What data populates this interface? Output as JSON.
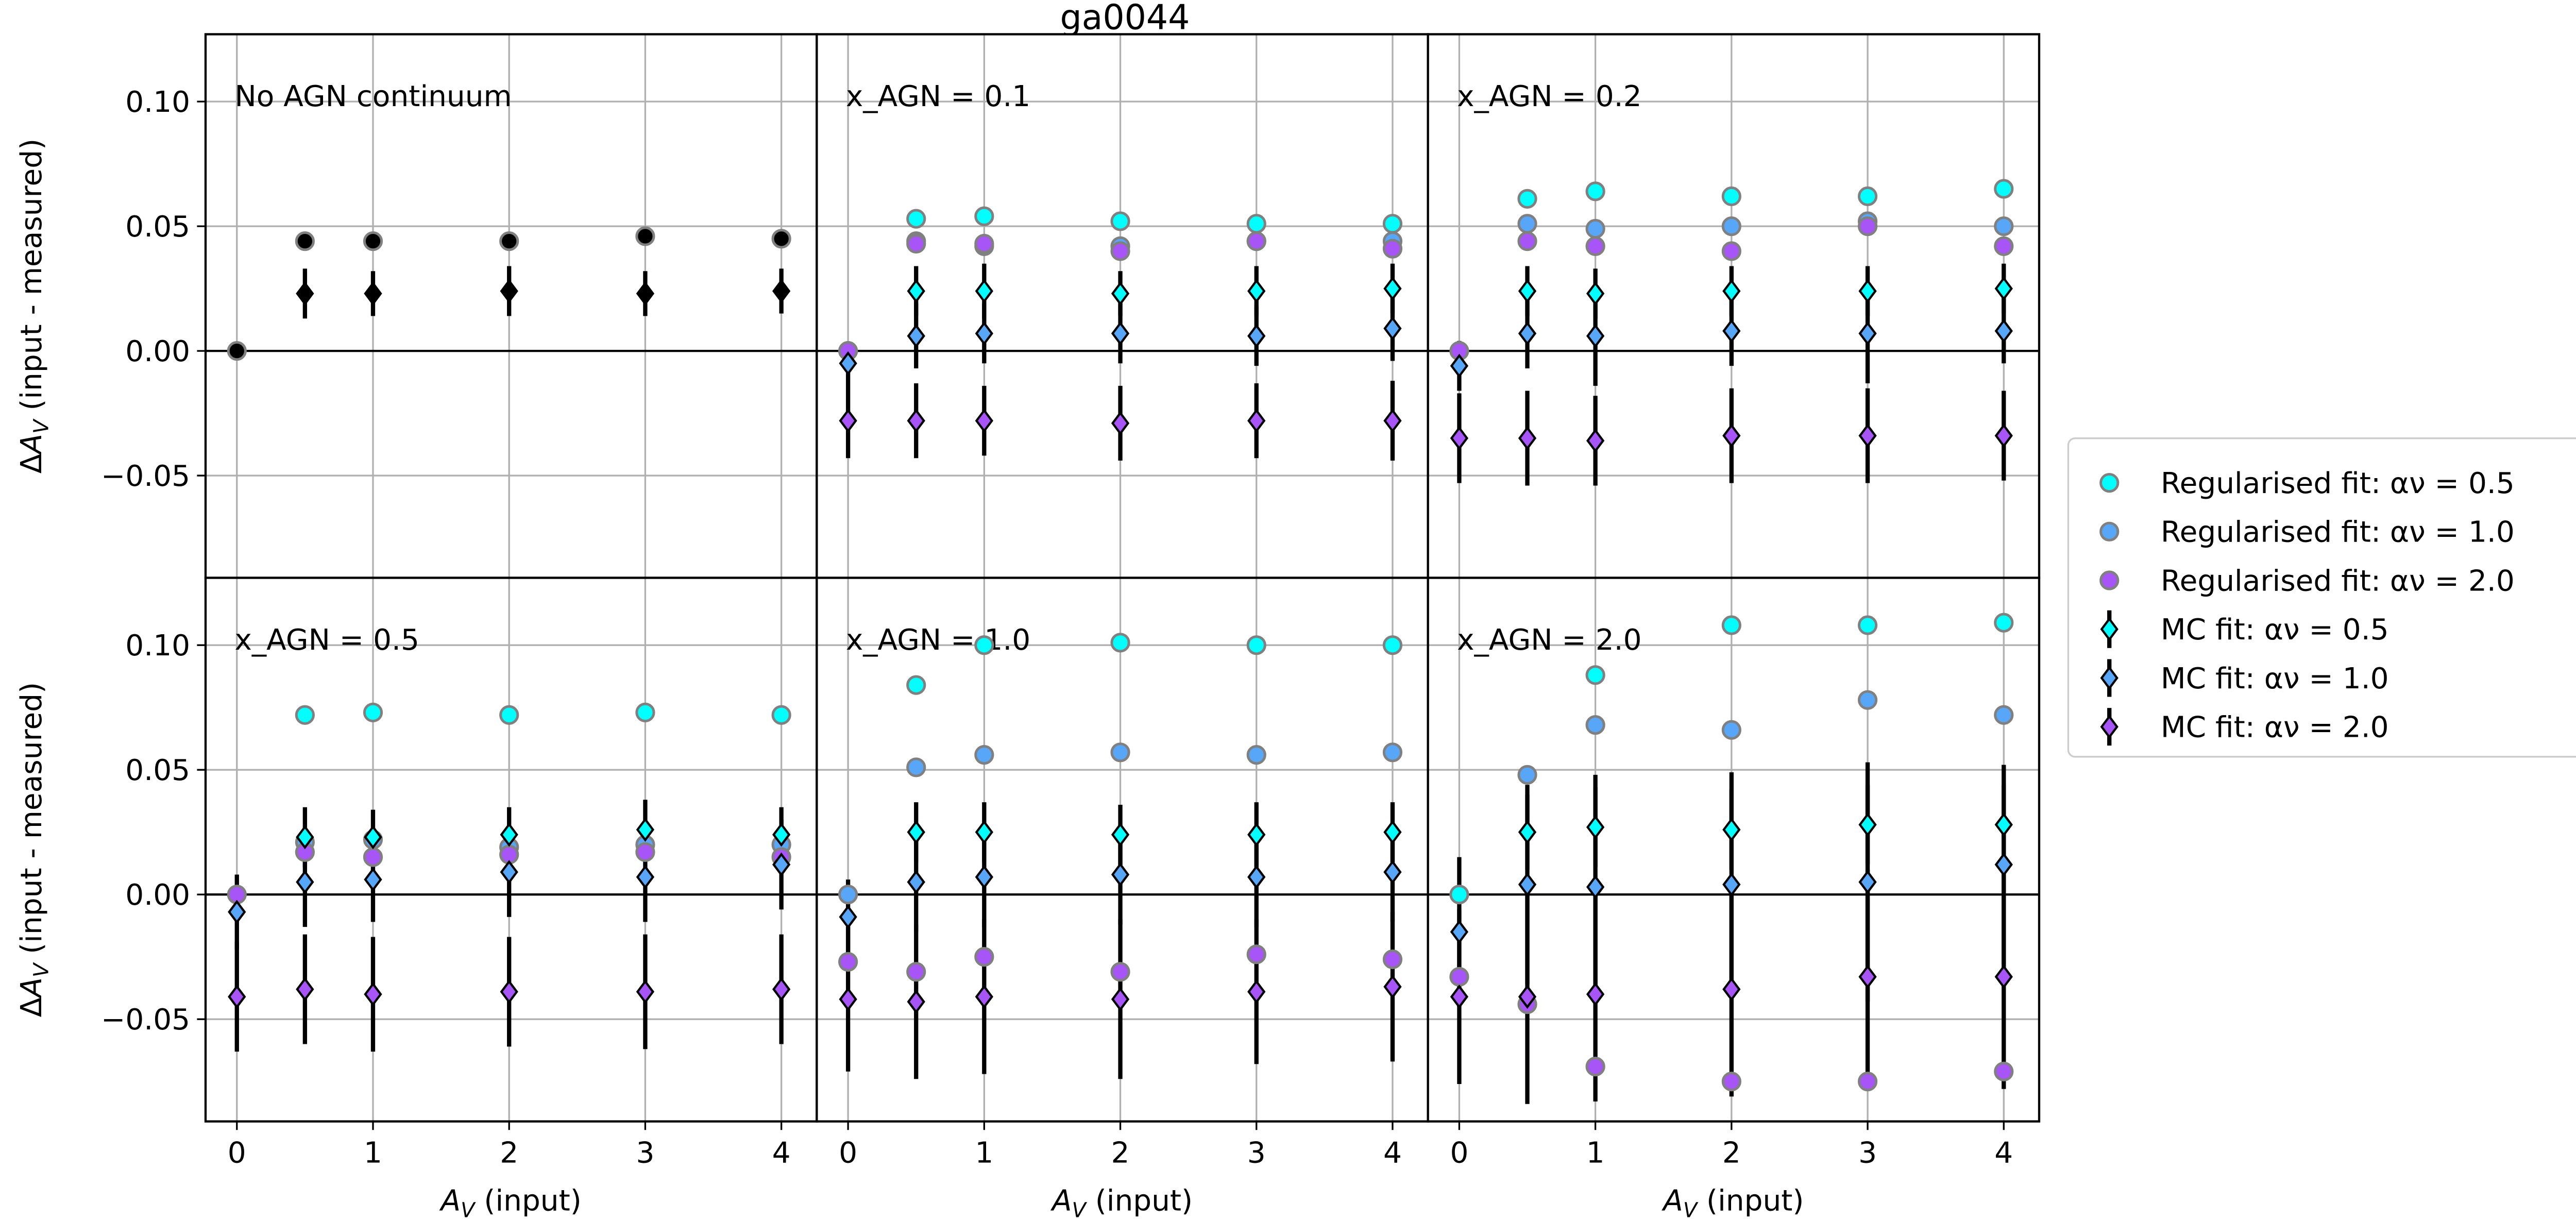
{
  "chart_data": {
    "type": "scatter",
    "title": "ga0044",
    "xlabel": "A_V (input)",
    "ylabel": "ΔA_V (input - measured)",
    "xlim": [
      -0.23,
      4.26
    ],
    "ylim": [
      -0.091,
      0.127
    ],
    "xticks": [
      "0",
      "1",
      "2",
      "3",
      "4"
    ],
    "yticks": [
      "0.10",
      "0.05",
      "0.00",
      "−0.05"
    ],
    "grid": true,
    "legend_position": "right",
    "colors": {
      "a05": "#00ffff",
      "a10": "#58a6f8",
      "a20": "#a855f7",
      "none": "#000000"
    },
    "legend": [
      {
        "label": "Regularised fit: αν = 0.5",
        "kind": "reg",
        "color": "a05"
      },
      {
        "label": "Regularised fit: αν = 1.0",
        "kind": "reg",
        "color": "a10"
      },
      {
        "label": "Regularised fit: αν = 2.0",
        "kind": "reg",
        "color": "a20"
      },
      {
        "label": "MC fit: αν = 0.5",
        "kind": "mc",
        "color": "a05"
      },
      {
        "label": "MC fit: αν = 1.0",
        "kind": "mc",
        "color": "a10"
      },
      {
        "label": "MC fit: αν = 2.0",
        "kind": "mc",
        "color": "a20"
      }
    ],
    "panels": [
      {
        "label": "No AGN continuum",
        "reg": [
          {
            "color": "none",
            "x": [
              0,
              0.5,
              1,
              2,
              3,
              4
            ],
            "y": [
              0,
              0.044,
              0.044,
              0.044,
              0.046,
              0.045
            ]
          }
        ],
        "mc": [
          {
            "color": "none",
            "x": [
              0.5,
              1,
              2,
              3,
              4
            ],
            "y": [
              0.023,
              0.023,
              0.024,
              0.023,
              0.024
            ],
            "err": [
              0.01,
              0.009,
              0.01,
              0.009,
              0.009
            ]
          }
        ]
      },
      {
        "label": "x_AGN = 0.1",
        "reg": [
          {
            "color": "a05",
            "x": [
              0.5,
              1,
              2,
              3,
              4
            ],
            "y": [
              0.053,
              0.054,
              0.052,
              0.051,
              0.051
            ]
          },
          {
            "color": "a10",
            "x": [
              0,
              0.5,
              1,
              2,
              3,
              4
            ],
            "y": [
              0,
              0.044,
              0.042,
              0.042,
              0.044,
              0.044
            ]
          },
          {
            "color": "a20",
            "x": [
              0,
              0.5,
              1,
              2,
              3,
              4
            ],
            "y": [
              0,
              0.043,
              0.043,
              0.04,
              0.044,
              0.041
            ]
          }
        ],
        "mc": [
          {
            "color": "a05",
            "x": [
              0.5,
              1,
              2,
              3,
              4
            ],
            "y": [
              0.024,
              0.024,
              0.023,
              0.024,
              0.025
            ],
            "err": [
              0.01,
              0.011,
              0.009,
              0.01,
              0.01
            ]
          },
          {
            "color": "a10",
            "x": [
              0,
              0.5,
              1,
              2,
              3,
              4
            ],
            "y": [
              -0.005,
              0.006,
              0.007,
              0.007,
              0.006,
              0.009
            ],
            "err": [
              0.008,
              0.013,
              0.012,
              0.012,
              0.012,
              0.013
            ]
          },
          {
            "color": "a20",
            "x": [
              0,
              0.5,
              1,
              2,
              3,
              4
            ],
            "y": [
              -0.028,
              -0.028,
              -0.028,
              -0.029,
              -0.028,
              -0.028
            ],
            "err": [
              0.015,
              0.015,
              0.014,
              0.015,
              0.015,
              0.016
            ]
          }
        ]
      },
      {
        "label": "x_AGN = 0.2",
        "reg": [
          {
            "color": "a05",
            "x": [
              0.5,
              1,
              2,
              3,
              4
            ],
            "y": [
              0.061,
              0.064,
              0.062,
              0.062,
              0.065
            ]
          },
          {
            "color": "a10",
            "x": [
              0.5,
              1,
              2,
              3,
              4
            ],
            "y": [
              0.051,
              0.049,
              0.05,
              0.052,
              0.05
            ]
          },
          {
            "color": "a20",
            "x": [
              0,
              0.5,
              1,
              2,
              3,
              4
            ],
            "y": [
              0,
              0.044,
              0.042,
              0.04,
              0.05,
              0.042
            ]
          }
        ],
        "mc": [
          {
            "color": "a05",
            "x": [
              0.5,
              1,
              2,
              3,
              4
            ],
            "y": [
              0.024,
              0.023,
              0.024,
              0.024,
              0.025
            ],
            "err": [
              0.01,
              0.01,
              0.01,
              0.01,
              0.01
            ]
          },
          {
            "color": "a10",
            "x": [
              0,
              0.5,
              1,
              2,
              3,
              4
            ],
            "y": [
              -0.006,
              0.007,
              0.006,
              0.008,
              0.007,
              0.008
            ],
            "err": [
              0.01,
              0.014,
              0.02,
              0.014,
              0.02,
              0.013
            ]
          },
          {
            "color": "a20",
            "x": [
              0,
              0.5,
              1,
              2,
              3,
              4
            ],
            "y": [
              -0.035,
              -0.035,
              -0.036,
              -0.034,
              -0.034,
              -0.034
            ],
            "err": [
              0.018,
              0.019,
              0.018,
              0.019,
              0.019,
              0.018
            ]
          }
        ]
      },
      {
        "label": "x_AGN = 0.5",
        "reg": [
          {
            "color": "a05",
            "x": [
              0.5,
              1,
              2,
              3,
              4
            ],
            "y": [
              0.072,
              0.073,
              0.072,
              0.073,
              0.072
            ]
          },
          {
            "color": "a10",
            "x": [
              0.5,
              1,
              2,
              3,
              4
            ],
            "y": [
              0.021,
              0.022,
              0.019,
              0.02,
              0.02
            ]
          },
          {
            "color": "a20",
            "x": [
              0,
              0.5,
              1,
              2,
              3,
              4
            ],
            "y": [
              0,
              0.017,
              0.015,
              0.016,
              0.017,
              0.015
            ]
          }
        ],
        "mc": [
          {
            "color": "a05",
            "x": [
              0.5,
              1,
              2,
              3,
              4
            ],
            "y": [
              0.023,
              0.023,
              0.024,
              0.026,
              0.024
            ],
            "err": [
              0.012,
              0.011,
              0.011,
              0.012,
              0.011
            ]
          },
          {
            "color": "a10",
            "x": [
              0,
              0.5,
              1,
              2,
              3,
              4
            ],
            "y": [
              -0.007,
              0.005,
              0.006,
              0.009,
              0.007,
              0.012
            ],
            "err": [
              0.015,
              0.018,
              0.017,
              0.018,
              0.018,
              0.018
            ]
          },
          {
            "color": "a20",
            "x": [
              0,
              0.5,
              1,
              2,
              3,
              4
            ],
            "y": [
              -0.041,
              -0.038,
              -0.04,
              -0.039,
              -0.039,
              -0.038
            ],
            "err": [
              0.022,
              0.022,
              0.023,
              0.022,
              0.023,
              0.022
            ]
          }
        ]
      },
      {
        "label": "x_AGN = 1.0",
        "reg": [
          {
            "color": "a05",
            "x": [
              0.5,
              1,
              2,
              3,
              4
            ],
            "y": [
              0.084,
              0.1,
              0.101,
              0.1,
              0.1
            ]
          },
          {
            "color": "a10",
            "x": [
              0,
              0.5,
              1,
              2,
              3,
              4
            ],
            "y": [
              0,
              0.051,
              0.056,
              0.057,
              0.056,
              0.057
            ]
          },
          {
            "color": "a20",
            "x": [
              0,
              0.5,
              1,
              2,
              3,
              4
            ],
            "y": [
              -0.027,
              -0.031,
              -0.025,
              -0.031,
              -0.024,
              -0.026
            ]
          }
        ],
        "mc": [
          {
            "color": "a05",
            "x": [
              0.5,
              1,
              2,
              3,
              4
            ],
            "y": [
              0.025,
              0.025,
              0.024,
              0.024,
              0.025
            ],
            "err": [
              0.012,
              0.012,
              0.012,
              0.013,
              0.012
            ]
          },
          {
            "color": "a10",
            "x": [
              0,
              0.5,
              1,
              2,
              3,
              4
            ],
            "y": [
              -0.009,
              0.005,
              0.007,
              0.008,
              0.007,
              0.009
            ],
            "err": [
              0.015,
              0.02,
              0.02,
              0.02,
              0.02,
              0.02
            ]
          },
          {
            "color": "a20",
            "x": [
              0,
              0.5,
              1,
              2,
              3,
              4
            ],
            "y": [
              -0.042,
              -0.043,
              -0.041,
              -0.042,
              -0.039,
              -0.037
            ],
            "err": [
              0.029,
              0.031,
              0.031,
              0.032,
              0.029,
              0.03
            ]
          }
        ]
      },
      {
        "label": "x_AGN = 2.0",
        "reg": [
          {
            "color": "a05",
            "x": [
              0,
              1,
              2,
              3,
              4
            ],
            "y": [
              0,
              0.088,
              0.108,
              0.108,
              0.109
            ]
          },
          {
            "color": "a10",
            "x": [
              0.5,
              1,
              2,
              3,
              4
            ],
            "y": [
              0.048,
              0.068,
              0.066,
              0.078,
              0.072
            ]
          },
          {
            "color": "a20",
            "x": [
              0,
              0.5,
              1,
              2,
              3,
              4
            ],
            "y": [
              -0.033,
              -0.044,
              -0.069,
              -0.075,
              -0.075,
              -0.071
            ]
          }
        ],
        "mc": [
          {
            "color": "a05",
            "x": [
              0.5,
              1,
              2,
              3,
              4
            ],
            "y": [
              0.025,
              0.027,
              0.026,
              0.028,
              0.028
            ],
            "err": [
              0.015,
              0.016,
              0.016,
              0.016,
              0.016
            ]
          },
          {
            "color": "a10",
            "x": [
              0,
              0.5,
              1,
              2,
              3,
              4
            ],
            "y": [
              -0.015,
              0.004,
              0.003,
              0.004,
              0.005,
              0.012
            ],
            "err": [
              0.03,
              0.04,
              0.045,
              0.045,
              0.048,
              0.04
            ]
          },
          {
            "color": "a20",
            "x": [
              0,
              0.5,
              1,
              2,
              3,
              4
            ],
            "y": [
              -0.041,
              -0.041,
              -0.04,
              -0.038,
              -0.033,
              -0.033
            ],
            "err": [
              0.035,
              0.043,
              0.043,
              0.043,
              0.043,
              0.045
            ]
          }
        ]
      }
    ]
  }
}
